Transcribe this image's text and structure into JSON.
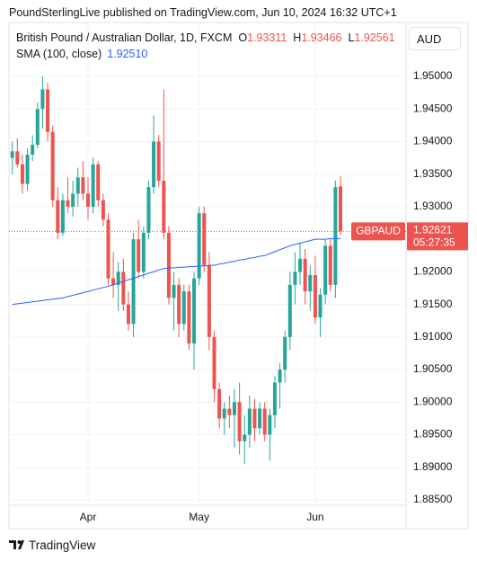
{
  "header": {
    "publisher": "PoundSterlingLive published on TradingView.com, Jun 10, 2024 16:32 UTC+1"
  },
  "chart_data": {
    "type": "candlestick",
    "title": "British Pound / Australian Dollar, 1D, FXCM",
    "ohlc_labels": [
      "O",
      "H",
      "L"
    ],
    "symbol": "GBPAUD",
    "countdown": "05:27:35",
    "currency": "AUD",
    "colors": {
      "up": "#26a69a",
      "down": "#ef5350"
    },
    "grid": true,
    "categories": [
      null,
      null,
      null,
      null,
      null,
      null,
      null,
      null,
      null,
      null,
      null,
      null,
      null,
      null,
      null,
      "Apr",
      null,
      null,
      null,
      null,
      null,
      null,
      null,
      null,
      null,
      null,
      null,
      null,
      null,
      null,
      null,
      null,
      null,
      null,
      null,
      null,
      null,
      "May",
      null,
      null,
      null,
      null,
      null,
      null,
      null,
      null,
      null,
      null,
      null,
      null,
      null,
      null,
      null,
      null,
      null,
      null,
      null,
      null,
      null,
      null,
      "Jun",
      null,
      null,
      null,
      null,
      null
    ],
    "ohlc": [
      [
        1.9375,
        1.94,
        1.935,
        1.9385
      ],
      [
        1.9385,
        1.9405,
        1.936,
        1.9365
      ],
      [
        1.9365,
        1.938,
        1.932,
        1.9335
      ],
      [
        1.9335,
        1.939,
        1.9325,
        1.938
      ],
      [
        1.938,
        1.941,
        1.937,
        1.9395
      ],
      [
        1.9395,
        1.946,
        1.939,
        1.945
      ],
      [
        1.945,
        1.95,
        1.942,
        1.948
      ],
      [
        1.948,
        1.949,
        1.94,
        1.9415
      ],
      [
        1.9415,
        1.9425,
        1.93,
        1.931
      ],
      [
        1.931,
        1.933,
        1.925,
        1.926
      ],
      [
        1.926,
        1.932,
        1.9255,
        1.931
      ],
      [
        1.931,
        1.9345,
        1.929,
        1.93
      ],
      [
        1.93,
        1.934,
        1.9285,
        1.932
      ],
      [
        1.932,
        1.936,
        1.93,
        1.9345
      ],
      [
        1.9345,
        1.937,
        1.931,
        1.932
      ],
      [
        1.932,
        1.9345,
        1.928,
        1.93
      ],
      [
        1.93,
        1.9375,
        1.929,
        1.9365
      ],
      [
        1.9365,
        1.937,
        1.93,
        1.931
      ],
      [
        1.931,
        1.932,
        1.927,
        1.928
      ],
      [
        1.928,
        1.929,
        1.918,
        1.919
      ],
      [
        1.919,
        1.923,
        1.916,
        1.918
      ],
      [
        1.918,
        1.9215,
        1.914,
        1.92
      ],
      [
        1.92,
        1.922,
        1.914,
        1.915
      ],
      [
        1.915,
        1.917,
        1.911,
        1.912
      ],
      [
        1.912,
        1.926,
        1.91,
        1.925
      ],
      [
        1.925,
        1.928,
        1.919,
        1.92
      ],
      [
        1.92,
        1.927,
        1.919,
        1.926
      ],
      [
        1.926,
        1.934,
        1.925,
        1.933
      ],
      [
        1.933,
        1.944,
        1.932,
        1.94
      ],
      [
        1.94,
        1.941,
        1.933,
        1.934
      ],
      [
        1.934,
        1.948,
        1.925,
        1.926
      ],
      [
        1.926,
        1.927,
        1.915,
        1.916
      ],
      [
        1.916,
        1.92,
        1.911,
        1.918
      ],
      [
        1.918,
        1.919,
        1.91,
        1.912
      ],
      [
        1.912,
        1.918,
        1.911,
        1.917
      ],
      [
        1.917,
        1.918,
        1.908,
        1.909
      ],
      [
        1.909,
        1.92,
        1.905,
        1.919
      ],
      [
        1.919,
        1.93,
        1.918,
        1.929
      ],
      [
        1.929,
        1.93,
        1.92,
        1.921
      ],
      [
        1.921,
        1.923,
        1.908,
        1.91
      ],
      [
        1.91,
        1.911,
        1.9,
        1.902
      ],
      [
        1.902,
        1.903,
        1.896,
        1.8975
      ],
      [
        1.8975,
        1.9,
        1.895,
        1.899
      ],
      [
        1.899,
        1.901,
        1.896,
        1.898
      ],
      [
        1.898,
        1.902,
        1.893,
        1.9
      ],
      [
        1.9,
        1.903,
        1.892,
        1.894
      ],
      [
        1.894,
        1.898,
        1.8905,
        1.895
      ],
      [
        1.895,
        1.901,
        1.893,
        1.899
      ],
      [
        1.899,
        1.9005,
        1.894,
        1.896
      ],
      [
        1.896,
        1.9,
        1.895,
        1.899
      ],
      [
        1.899,
        1.9,
        1.894,
        1.895
      ],
      [
        1.895,
        1.899,
        1.891,
        1.898
      ],
      [
        1.898,
        1.904,
        1.896,
        1.903
      ],
      [
        1.903,
        1.906,
        1.899,
        1.905
      ],
      [
        1.905,
        1.911,
        1.903,
        1.91
      ],
      [
        1.91,
        1.92,
        1.908,
        1.918
      ],
      [
        1.918,
        1.923,
        1.915,
        1.92
      ],
      [
        1.92,
        1.9245,
        1.918,
        1.922
      ],
      [
        1.922,
        1.9235,
        1.915,
        1.917
      ],
      [
        1.917,
        1.921,
        1.914,
        1.9195
      ],
      [
        1.9195,
        1.9225,
        1.912,
        1.913
      ],
      [
        1.913,
        1.9175,
        1.91,
        1.9165
      ],
      [
        1.9165,
        1.925,
        1.915,
        1.924
      ],
      [
        1.924,
        1.925,
        1.917,
        1.918
      ],
      [
        1.918,
        1.934,
        1.916,
        1.933
      ],
      [
        1.93311,
        1.93466,
        1.92561,
        1.92621
      ]
    ],
    "sma": {
      "name": "SMA (100, close)",
      "color": "#2962ff",
      "value_label": "1.92510",
      "values": [
        1.915,
        1.9151,
        1.9152,
        1.9153,
        1.9154,
        1.9155,
        1.9156,
        1.9157,
        1.9158,
        1.9159,
        1.916,
        1.9162,
        1.9164,
        1.9166,
        1.9168,
        1.917,
        1.9172,
        1.9174,
        1.9176,
        1.9178,
        1.918,
        1.9183,
        1.9185,
        1.9188,
        1.919,
        1.9193,
        1.9195,
        1.9198,
        1.92,
        1.9203,
        1.9205,
        1.9206,
        1.9206,
        1.9207,
        1.9207,
        1.9208,
        1.9208,
        1.9209,
        1.9209,
        1.921,
        1.921,
        1.9212,
        1.9213,
        1.9215,
        1.9216,
        1.9218,
        1.9219,
        1.9221,
        1.9222,
        1.9224,
        1.9225,
        1.9228,
        1.9231,
        1.9234,
        1.9237,
        1.924,
        1.9242,
        1.9244,
        1.9246,
        1.9248,
        1.925,
        1.925,
        1.925,
        1.9251,
        1.9251,
        1.9251
      ]
    },
    "ylim": [
      1.88417,
      1.95828
    ],
    "yticks": [
      {
        "value": 1.885,
        "label": "1.88500"
      },
      {
        "value": 1.89,
        "label": "1.89000"
      },
      {
        "value": 1.895,
        "label": "1.89500"
      },
      {
        "value": 1.9,
        "label": "1.90000"
      },
      {
        "value": 1.905,
        "label": "1.90500"
      },
      {
        "value": 1.91,
        "label": "1.91000"
      },
      {
        "value": 1.915,
        "label": "1.91500"
      },
      {
        "value": 1.92,
        "label": "1.92000"
      },
      {
        "value": 1.925,
        "label": "1.92500"
      },
      {
        "value": 1.93,
        "label": "1.93000"
      },
      {
        "value": 1.935,
        "label": "1.93500"
      },
      {
        "value": 1.94,
        "label": "1.94000"
      },
      {
        "value": 1.945,
        "label": "1.94500"
      },
      {
        "value": 1.95,
        "label": "1.95000"
      }
    ]
  },
  "footer": {
    "brand": "TradingView"
  }
}
